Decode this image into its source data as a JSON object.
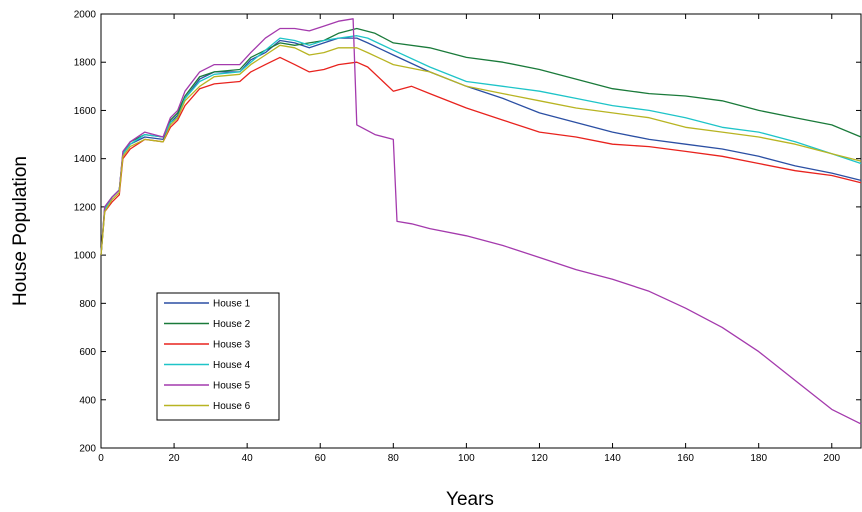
{
  "chart_data": {
    "type": "line",
    "title": "",
    "xlabel": "Years",
    "ylabel": "House Population",
    "xlim": [
      0,
      208
    ],
    "ylim": [
      200,
      2000
    ],
    "xticks": [
      0,
      20,
      40,
      60,
      80,
      100,
      120,
      140,
      160,
      180,
      200
    ],
    "yticks": [
      200,
      400,
      600,
      800,
      1000,
      1200,
      1400,
      1600,
      1800,
      2000
    ],
    "grid": false,
    "legend_position": "lower-left",
    "series": [
      {
        "name": "House 1",
        "color": "#2b4fa3",
        "points": [
          [
            0,
            1000
          ],
          [
            1,
            1190
          ],
          [
            3,
            1240
          ],
          [
            5,
            1270
          ],
          [
            6,
            1420
          ],
          [
            8,
            1460
          ],
          [
            12,
            1490
          ],
          [
            17,
            1480
          ],
          [
            19,
            1550
          ],
          [
            21,
            1580
          ],
          [
            23,
            1650
          ],
          [
            27,
            1730
          ],
          [
            31,
            1760
          ],
          [
            38,
            1760
          ],
          [
            41,
            1810
          ],
          [
            45,
            1840
          ],
          [
            49,
            1890
          ],
          [
            53,
            1880
          ],
          [
            57,
            1860
          ],
          [
            61,
            1880
          ],
          [
            65,
            1900
          ],
          [
            70,
            1900
          ],
          [
            73,
            1880
          ],
          [
            80,
            1830
          ],
          [
            90,
            1760
          ],
          [
            100,
            1700
          ],
          [
            110,
            1650
          ],
          [
            120,
            1590
          ],
          [
            130,
            1550
          ],
          [
            140,
            1510
          ],
          [
            150,
            1480
          ],
          [
            160,
            1460
          ],
          [
            170,
            1440
          ],
          [
            180,
            1410
          ],
          [
            190,
            1370
          ],
          [
            200,
            1340
          ],
          [
            208,
            1310
          ]
        ]
      },
      {
        "name": "House 2",
        "color": "#1a7a3a",
        "points": [
          [
            0,
            1000
          ],
          [
            1,
            1200
          ],
          [
            3,
            1240
          ],
          [
            5,
            1270
          ],
          [
            6,
            1420
          ],
          [
            8,
            1470
          ],
          [
            12,
            1500
          ],
          [
            17,
            1490
          ],
          [
            19,
            1560
          ],
          [
            21,
            1590
          ],
          [
            23,
            1660
          ],
          [
            27,
            1740
          ],
          [
            31,
            1760
          ],
          [
            38,
            1770
          ],
          [
            41,
            1820
          ],
          [
            45,
            1850
          ],
          [
            49,
            1880
          ],
          [
            53,
            1870
          ],
          [
            57,
            1880
          ],
          [
            61,
            1890
          ],
          [
            65,
            1920
          ],
          [
            70,
            1940
          ],
          [
            75,
            1920
          ],
          [
            80,
            1880
          ],
          [
            90,
            1860
          ],
          [
            100,
            1820
          ],
          [
            110,
            1800
          ],
          [
            120,
            1770
          ],
          [
            130,
            1730
          ],
          [
            140,
            1690
          ],
          [
            150,
            1670
          ],
          [
            160,
            1660
          ],
          [
            170,
            1640
          ],
          [
            180,
            1600
          ],
          [
            190,
            1570
          ],
          [
            200,
            1540
          ],
          [
            208,
            1490
          ]
        ]
      },
      {
        "name": "House 3",
        "color": "#e8231e",
        "points": [
          [
            0,
            1000
          ],
          [
            1,
            1180
          ],
          [
            3,
            1220
          ],
          [
            5,
            1250
          ],
          [
            6,
            1400
          ],
          [
            8,
            1440
          ],
          [
            12,
            1480
          ],
          [
            17,
            1470
          ],
          [
            19,
            1530
          ],
          [
            21,
            1560
          ],
          [
            23,
            1620
          ],
          [
            27,
            1690
          ],
          [
            31,
            1710
          ],
          [
            38,
            1720
          ],
          [
            41,
            1760
          ],
          [
            45,
            1790
          ],
          [
            49,
            1820
          ],
          [
            53,
            1790
          ],
          [
            57,
            1760
          ],
          [
            61,
            1770
          ],
          [
            65,
            1790
          ],
          [
            70,
            1800
          ],
          [
            73,
            1780
          ],
          [
            80,
            1680
          ],
          [
            85,
            1700
          ],
          [
            90,
            1670
          ],
          [
            100,
            1610
          ],
          [
            110,
            1560
          ],
          [
            120,
            1510
          ],
          [
            130,
            1490
          ],
          [
            140,
            1460
          ],
          [
            150,
            1450
          ],
          [
            160,
            1430
          ],
          [
            170,
            1410
          ],
          [
            180,
            1380
          ],
          [
            190,
            1350
          ],
          [
            200,
            1330
          ],
          [
            208,
            1300
          ]
        ]
      },
      {
        "name": "House 4",
        "color": "#1ec4c8",
        "points": [
          [
            0,
            1000
          ],
          [
            1,
            1190
          ],
          [
            3,
            1240
          ],
          [
            5,
            1270
          ],
          [
            6,
            1420
          ],
          [
            8,
            1460
          ],
          [
            12,
            1500
          ],
          [
            17,
            1490
          ],
          [
            19,
            1550
          ],
          [
            21,
            1570
          ],
          [
            23,
            1650
          ],
          [
            27,
            1720
          ],
          [
            31,
            1750
          ],
          [
            38,
            1760
          ],
          [
            41,
            1800
          ],
          [
            45,
            1850
          ],
          [
            49,
            1900
          ],
          [
            53,
            1890
          ],
          [
            57,
            1870
          ],
          [
            61,
            1890
          ],
          [
            65,
            1900
          ],
          [
            70,
            1910
          ],
          [
            73,
            1900
          ],
          [
            80,
            1850
          ],
          [
            90,
            1780
          ],
          [
            100,
            1720
          ],
          [
            110,
            1700
          ],
          [
            120,
            1680
          ],
          [
            130,
            1650
          ],
          [
            140,
            1620
          ],
          [
            150,
            1600
          ],
          [
            160,
            1570
          ],
          [
            170,
            1530
          ],
          [
            180,
            1510
          ],
          [
            190,
            1470
          ],
          [
            200,
            1420
          ],
          [
            208,
            1380
          ]
        ]
      },
      {
        "name": "House 5",
        "color": "#a43aad",
        "points": [
          [
            0,
            1000
          ],
          [
            1,
            1200
          ],
          [
            3,
            1240
          ],
          [
            5,
            1270
          ],
          [
            6,
            1430
          ],
          [
            8,
            1470
          ],
          [
            12,
            1510
          ],
          [
            17,
            1490
          ],
          [
            19,
            1570
          ],
          [
            21,
            1600
          ],
          [
            23,
            1680
          ],
          [
            27,
            1760
          ],
          [
            31,
            1790
          ],
          [
            38,
            1790
          ],
          [
            41,
            1840
          ],
          [
            45,
            1900
          ],
          [
            49,
            1940
          ],
          [
            53,
            1940
          ],
          [
            57,
            1930
          ],
          [
            61,
            1950
          ],
          [
            65,
            1970
          ],
          [
            69,
            1980
          ],
          [
            70,
            1540
          ],
          [
            75,
            1500
          ],
          [
            80,
            1480
          ],
          [
            81,
            1140
          ],
          [
            85,
            1130
          ],
          [
            90,
            1110
          ],
          [
            100,
            1080
          ],
          [
            110,
            1040
          ],
          [
            120,
            990
          ],
          [
            130,
            940
          ],
          [
            140,
            900
          ],
          [
            150,
            850
          ],
          [
            160,
            780
          ],
          [
            170,
            700
          ],
          [
            180,
            600
          ],
          [
            190,
            480
          ],
          [
            200,
            360
          ],
          [
            208,
            300
          ]
        ]
      },
      {
        "name": "House 6",
        "color": "#b8b422",
        "points": [
          [
            0,
            1000
          ],
          [
            1,
            1180
          ],
          [
            3,
            1230
          ],
          [
            5,
            1260
          ],
          [
            6,
            1410
          ],
          [
            8,
            1450
          ],
          [
            12,
            1480
          ],
          [
            17,
            1470
          ],
          [
            19,
            1540
          ],
          [
            21,
            1570
          ],
          [
            23,
            1640
          ],
          [
            27,
            1700
          ],
          [
            31,
            1740
          ],
          [
            38,
            1750
          ],
          [
            41,
            1790
          ],
          [
            45,
            1830
          ],
          [
            49,
            1870
          ],
          [
            53,
            1860
          ],
          [
            57,
            1830
          ],
          [
            61,
            1840
          ],
          [
            65,
            1860
          ],
          [
            70,
            1860
          ],
          [
            73,
            1840
          ],
          [
            80,
            1790
          ],
          [
            90,
            1760
          ],
          [
            100,
            1700
          ],
          [
            110,
            1670
          ],
          [
            120,
            1640
          ],
          [
            130,
            1610
          ],
          [
            140,
            1590
          ],
          [
            150,
            1570
          ],
          [
            160,
            1530
          ],
          [
            170,
            1510
          ],
          [
            180,
            1490
          ],
          [
            190,
            1460
          ],
          [
            200,
            1420
          ],
          [
            208,
            1390
          ]
        ]
      }
    ]
  }
}
